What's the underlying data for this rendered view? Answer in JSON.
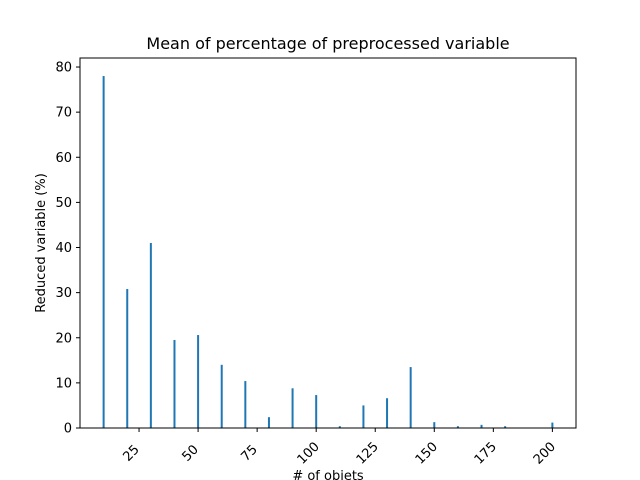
{
  "chart_data": {
    "type": "bar",
    "title": "Mean of percentage of preprocessed variable",
    "xlabel": "# of objets",
    "ylabel": "Reduced variable (%)",
    "xlim": [
      0,
      210
    ],
    "ylim": [
      0,
      82
    ],
    "xticks": [
      25,
      50,
      75,
      100,
      125,
      150,
      175,
      200
    ],
    "yticks": [
      0,
      10,
      20,
      30,
      40,
      50,
      60,
      70,
      80
    ],
    "bar_color": "#1f77b4",
    "grid": false,
    "x": [
      10,
      20,
      30,
      40,
      50,
      60,
      70,
      80,
      90,
      100,
      110,
      120,
      130,
      140,
      150,
      160,
      170,
      180,
      190,
      200
    ],
    "values": [
      78,
      30.8,
      41,
      19.5,
      20.6,
      14,
      10.4,
      2.4,
      8.8,
      7.3,
      0.4,
      5,
      6.6,
      13.5,
      1.3,
      0.4,
      0.7,
      0.4,
      0,
      1.2
    ]
  }
}
